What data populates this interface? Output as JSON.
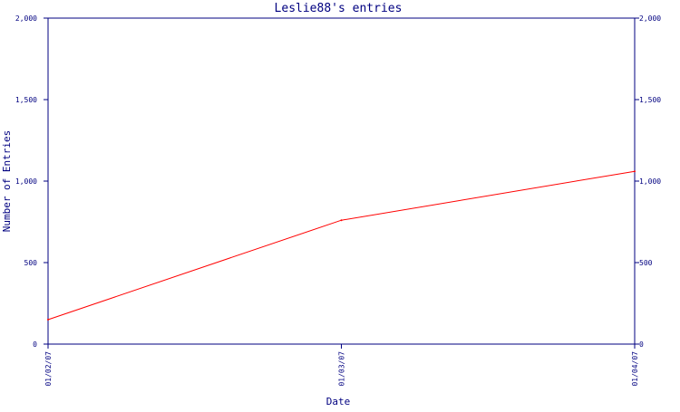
{
  "chart_data": {
    "type": "line",
    "title": "Leslie88's entries",
    "xlabel": "Date",
    "ylabel": "Number of Entries",
    "x": [
      "01/02/07",
      "01/03/07",
      "01/04/07"
    ],
    "series": [
      {
        "values": [
          150,
          760,
          1060
        ]
      }
    ],
    "ylim": [
      0,
      2000
    ],
    "yticks": [
      0,
      500,
      1000,
      1500,
      2000
    ],
    "ytick_labels": [
      "0",
      "500",
      "1,000",
      "1,500",
      "2,000"
    ],
    "right_axis": true,
    "grid": false,
    "colors": {
      "axis": "#000080",
      "text": "#000080",
      "line": "#ff0000",
      "background": "#ffffff"
    }
  }
}
